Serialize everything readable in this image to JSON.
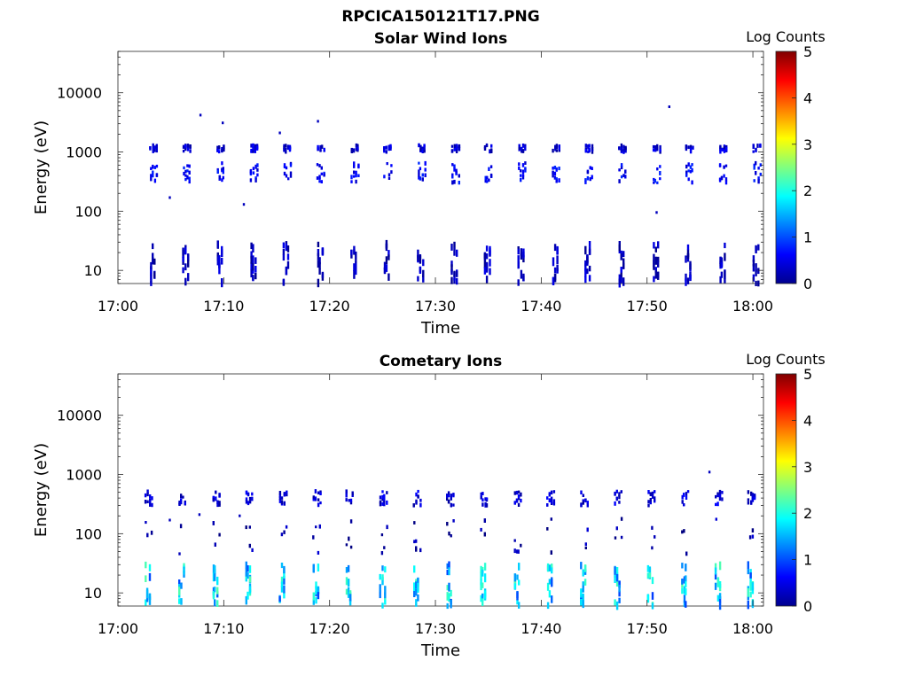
{
  "figure_title": "RPCICA150121T17.PNG",
  "chart_data": [
    {
      "type": "heatmap",
      "title": "Solar Wind Ions",
      "xlabel": "Time",
      "ylabel": "Energy (eV)",
      "y_scale": "log",
      "ylim": [
        6,
        50000
      ],
      "x_range": [
        "17:00",
        "18:01"
      ],
      "x_tick_labels": [
        "17:00",
        "17:10",
        "17:20",
        "17:30",
        "17:40",
        "17:50",
        "18:00"
      ],
      "y_tick_labels": [
        "10",
        "100",
        "1000",
        "10000"
      ],
      "colorbar": {
        "label": "Log Counts",
        "range": [
          0,
          5
        ],
        "tick_labels": [
          "0",
          "1",
          "2",
          "3",
          "4",
          "5"
        ],
        "colormap": "jet"
      },
      "sweep_start_times_min": [
        3.0,
        6.1,
        9.3,
        12.5,
        15.6,
        18.8,
        22.0,
        25.1,
        28.3,
        31.5,
        34.6,
        37.8,
        41.0,
        44.1,
        47.3,
        50.5,
        53.6,
        56.8,
        60.0
      ],
      "bands": [
        {
          "name": "~1200 eV",
          "e_lo": 1000,
          "e_hi": 1300,
          "log_counts": 0.4
        },
        {
          "name": "~400 eV",
          "e_lo": 300,
          "e_hi": 650,
          "log_counts": 0.6
        },
        {
          "name": "~15 eV",
          "e_lo": 6,
          "e_hi": 28,
          "log_counts": 0.3
        }
      ],
      "isolated_points": [
        {
          "t": 7.7,
          "e": 4200
        },
        {
          "t": 9.8,
          "e": 3100
        },
        {
          "t": 15.2,
          "e": 2100
        },
        {
          "t": 18.8,
          "e": 3300
        },
        {
          "t": 52.0,
          "e": 5800
        },
        {
          "t": 4.8,
          "e": 170
        },
        {
          "t": 11.8,
          "e": 130
        },
        {
          "t": 50.8,
          "e": 95
        }
      ]
    },
    {
      "type": "heatmap",
      "title": "Cometary Ions",
      "xlabel": "Time",
      "ylabel": "Energy (eV)",
      "y_scale": "log",
      "ylim": [
        6,
        50000
      ],
      "x_range": [
        "17:00",
        "18:01"
      ],
      "x_tick_labels": [
        "17:00",
        "17:10",
        "17:20",
        "17:30",
        "17:40",
        "17:50",
        "18:00"
      ],
      "y_tick_labels": [
        "10",
        "100",
        "1000",
        "10000"
      ],
      "colorbar": {
        "label": "Log Counts",
        "range": [
          0,
          5
        ],
        "tick_labels": [
          "0",
          "1",
          "2",
          "3",
          "4",
          "5"
        ],
        "colormap": "jet"
      },
      "sweep_start_times_min": [
        2.5,
        5.7,
        8.9,
        12.0,
        15.2,
        18.4,
        21.5,
        24.7,
        27.9,
        31.0,
        34.2,
        37.4,
        40.5,
        43.7,
        46.9,
        50.0,
        53.2,
        56.4,
        59.5
      ],
      "bands": [
        {
          "name": "~450 eV",
          "e_lo": 300,
          "e_hi": 520,
          "log_counts": 0.4
        },
        {
          "name": "~80 eV scattered",
          "e_lo": 45,
          "e_hi": 180,
          "log_counts": 0.2
        },
        {
          "name": "~15 eV",
          "e_lo": 6,
          "e_hi": 30,
          "log_counts": 1.6
        }
      ],
      "isolated_points": [
        {
          "t": 55.8,
          "e": 1100
        },
        {
          "t": 4.8,
          "e": 170
        },
        {
          "t": 7.6,
          "e": 210
        },
        {
          "t": 11.4,
          "e": 200
        },
        {
          "t": 18.6,
          "e": 130
        }
      ]
    }
  ]
}
